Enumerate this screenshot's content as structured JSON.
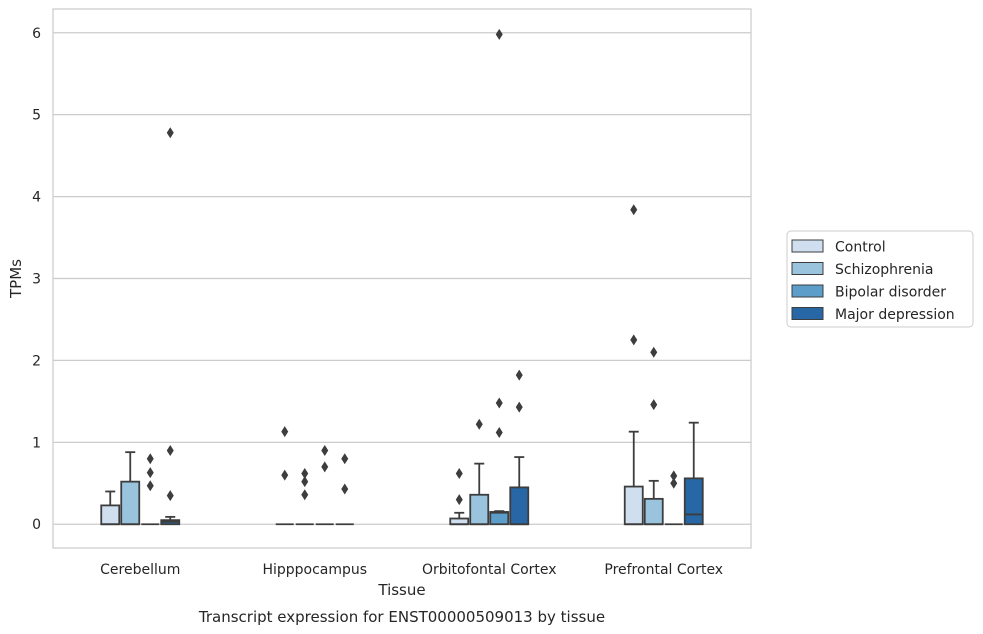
{
  "chart_data": {
    "type": "box",
    "caption": "Transcript expression for ENST00000509013 by tissue",
    "xlabel": "Tissue",
    "ylabel": "TPMs",
    "ylim": [
      -0.29,
      6.29
    ],
    "yticks": [
      0,
      1,
      2,
      3,
      4,
      5,
      6
    ],
    "grid": "horizontal",
    "legend_position": "right",
    "categories": [
      "Cerebellum",
      "Hipppocampus",
      "Orbitofontal Cortex",
      "Prefrontal Cortex"
    ],
    "series": [
      {
        "name": "Control",
        "color": "#cfdff0",
        "boxes": [
          {
            "q1": 0,
            "median": 0,
            "q3": 0.23,
            "whisker_low": 0,
            "whisker_high": 0.4,
            "outliers": []
          },
          {
            "q1": 0,
            "median": 0,
            "q3": 0,
            "whisker_low": 0,
            "whisker_high": 0,
            "outliers": [
              1.13,
              0.6
            ]
          },
          {
            "q1": 0,
            "median": 0,
            "q3": 0.07,
            "whisker_low": 0,
            "whisker_high": 0.14,
            "outliers": [
              0.62,
              0.3
            ]
          },
          {
            "q1": 0,
            "median": 0,
            "q3": 0.46,
            "whisker_low": 0,
            "whisker_high": 1.13,
            "outliers": [
              3.84,
              2.25
            ]
          }
        ]
      },
      {
        "name": "Schizophrenia",
        "color": "#9ac4dd",
        "boxes": [
          {
            "q1": 0,
            "median": 0,
            "q3": 0.52,
            "whisker_low": 0,
            "whisker_high": 0.88,
            "outliers": []
          },
          {
            "q1": 0,
            "median": 0,
            "q3": 0,
            "whisker_low": 0,
            "whisker_high": 0,
            "outliers": [
              0.62,
              0.52,
              0.36
            ]
          },
          {
            "q1": 0,
            "median": 0,
            "q3": 0.36,
            "whisker_low": 0,
            "whisker_high": 0.74,
            "outliers": [
              1.22
            ]
          },
          {
            "q1": 0,
            "median": 0,
            "q3": 0.31,
            "whisker_low": 0,
            "whisker_high": 0.53,
            "outliers": [
              2.1,
              1.46
            ]
          }
        ]
      },
      {
        "name": "Bipolar disorder",
        "color": "#5c9dc9",
        "boxes": [
          {
            "q1": 0,
            "median": 0,
            "q3": 0,
            "whisker_low": 0,
            "whisker_high": 0,
            "outliers": [
              0.8,
              0.63,
              0.47
            ]
          },
          {
            "q1": 0,
            "median": 0,
            "q3": 0,
            "whisker_low": 0,
            "whisker_high": 0,
            "outliers": [
              0.9,
              0.7
            ]
          },
          {
            "q1": 0,
            "median": 0.14,
            "q3": 0.15,
            "whisker_low": 0,
            "whisker_high": 0.16,
            "outliers": [
              5.98,
              1.48,
              1.12
            ]
          },
          {
            "q1": 0,
            "median": 0,
            "q3": 0,
            "whisker_low": 0,
            "whisker_high": 0,
            "outliers": [
              0.59,
              0.5
            ]
          }
        ]
      },
      {
        "name": "Major depression",
        "color": "#2767a5",
        "boxes": [
          {
            "q1": 0,
            "median": 0.03,
            "q3": 0.05,
            "whisker_low": 0,
            "whisker_high": 0.09,
            "outliers": [
              4.78,
              0.9,
              0.35
            ]
          },
          {
            "q1": 0,
            "median": 0,
            "q3": 0,
            "whisker_low": 0,
            "whisker_high": 0,
            "outliers": [
              0.8,
              0.43
            ]
          },
          {
            "q1": 0,
            "median": 0,
            "q3": 0.45,
            "whisker_low": 0,
            "whisker_high": 0.82,
            "outliers": [
              1.82,
              1.43
            ]
          },
          {
            "q1": 0,
            "median": 0.12,
            "q3": 0.56,
            "whisker_low": 0,
            "whisker_high": 1.24,
            "outliers": []
          }
        ]
      }
    ]
  }
}
